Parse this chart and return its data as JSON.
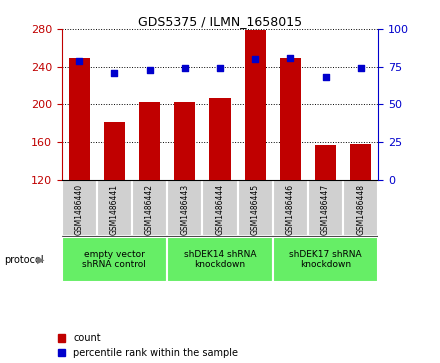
{
  "title": "GDS5375 / ILMN_1658015",
  "samples": [
    "GSM1486440",
    "GSM1486441",
    "GSM1486442",
    "GSM1486443",
    "GSM1486444",
    "GSM1486445",
    "GSM1486446",
    "GSM1486447",
    "GSM1486448"
  ],
  "counts": [
    249,
    181,
    203,
    203,
    207,
    279,
    249,
    157,
    158
  ],
  "percentile_ranks": [
    79,
    71,
    73,
    74,
    74,
    80,
    81,
    68,
    74
  ],
  "ylim_left": [
    120,
    280
  ],
  "ylim_right": [
    0,
    100
  ],
  "yticks_left": [
    120,
    160,
    200,
    240,
    280
  ],
  "yticks_right": [
    0,
    25,
    50,
    75,
    100
  ],
  "bar_color": "#C00000",
  "dot_color": "#0000CC",
  "protocols": [
    {
      "label": "empty vector\nshRNA control",
      "start": 0,
      "end": 3
    },
    {
      "label": "shDEK14 shRNA\nknockdown",
      "start": 3,
      "end": 6
    },
    {
      "label": "shDEK17 shRNA\nknockdown",
      "start": 6,
      "end": 9
    }
  ],
  "protocol_green": "#66EE66",
  "sample_box_gray": "#D0D0D0",
  "legend_count_label": "count",
  "legend_pct_label": "percentile rank within the sample",
  "protocol_label": "protocol"
}
